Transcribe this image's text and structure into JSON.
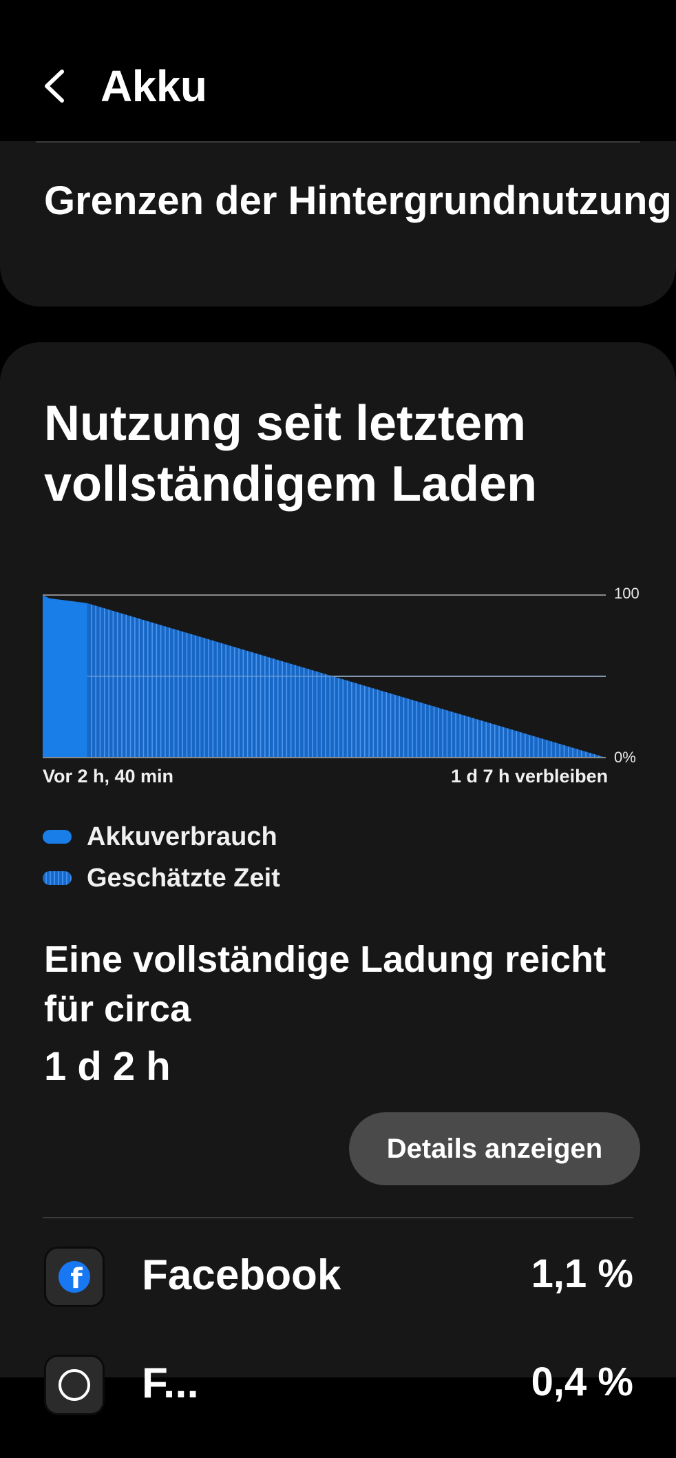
{
  "header": {
    "title": "Akku"
  },
  "background_limits": {
    "label": "Grenzen der Hintergrundnutzung"
  },
  "usage": {
    "title": "Nutzung seit letztem vollständigem Laden",
    "x_left_label": "Vor 2 h, 40 min",
    "x_right_label": "1 d 7 h verbleiben",
    "legend": {
      "used": "Akkuverbrauch",
      "estimated": "Geschätzte Zeit"
    },
    "full_charge_label": "Eine vollständige Ladung reicht für circa",
    "full_charge_value": "1 d 2 h",
    "details_button": "Details anzeigen"
  },
  "apps": [
    {
      "name": "Facebook",
      "percent": "1,1 %",
      "icon": "facebook-icon"
    },
    {
      "name": "F...",
      "percent": "0,4 %",
      "icon": "messenger-icon"
    }
  ],
  "colors": {
    "accent": "#1a7ee8",
    "card_bg": "#171717",
    "button_bg": "#4a4a4a"
  },
  "chart_data": {
    "type": "area",
    "ylim": [
      0,
      100
    ],
    "y_tick_labels": [
      "100",
      "0%"
    ],
    "x_labels": [
      "Vor 2 h, 40 min",
      "1 d 7 h verbleiben"
    ],
    "series": [
      {
        "name": "Akkuverbrauch",
        "x_hours": [
          0,
          0.4,
          2.67
        ],
        "values": [
          100,
          98,
          95
        ]
      },
      {
        "name": "Geschätzte Zeit",
        "x_hours": [
          2.67,
          33.67
        ],
        "values": [
          95,
          0
        ]
      }
    ],
    "grid": true
  }
}
